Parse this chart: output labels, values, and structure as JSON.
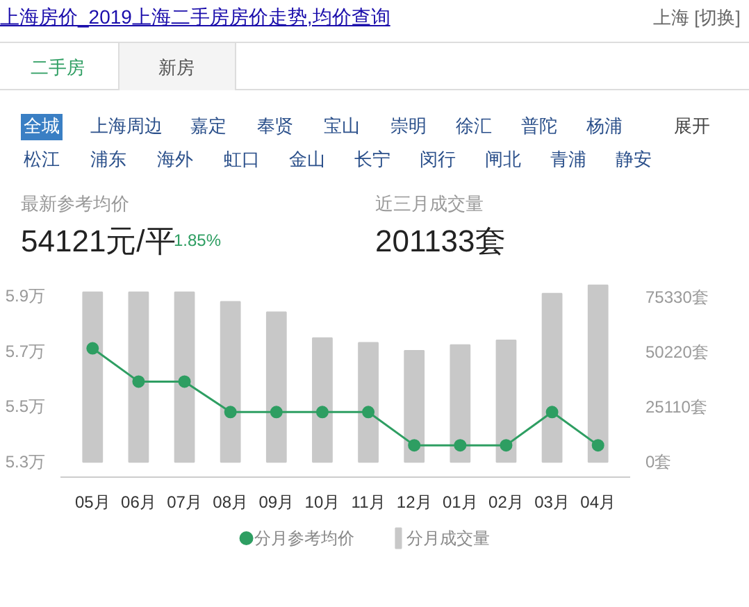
{
  "chart_data": {
    "type": "bar",
    "title": "上海房价_2019上海二手房房价走势,均价查询",
    "categories": [
      "05月",
      "06月",
      "07月",
      "08月",
      "09月",
      "10月",
      "11月",
      "12月",
      "01月",
      "02月",
      "03月",
      "04月"
    ],
    "series": [
      {
        "name": "分月成交量",
        "axis": "y2",
        "color": "#c8c8c8",
        "values": [
          77500,
          77500,
          77500,
          73200,
          68400,
          56600,
          54500,
          50800,
          53400,
          55600,
          76900,
          80700
        ]
      },
      {
        "name": "分月参考均价",
        "type": "line",
        "color": "#2e9e62",
        "values": [
          5.71,
          5.59,
          5.59,
          5.48,
          5.48,
          5.48,
          5.48,
          5.36,
          5.36,
          5.36,
          5.48,
          5.36
        ]
      }
    ],
    "ylim": [
      5.245,
      5.947
    ],
    "yticks": [
      {
        "value": 5.3,
        "label": "5.3万"
      },
      {
        "value": 5.5,
        "label": "5.5万"
      },
      {
        "value": 5.7,
        "label": "5.7万"
      },
      {
        "value": 5.9,
        "label": "5.9万"
      }
    ],
    "y2lim": [
      -6900,
      81900
    ],
    "y2ticks": [
      {
        "value": 0,
        "label": "0套"
      },
      {
        "value": 25110,
        "label": "25110套"
      },
      {
        "value": 50220,
        "label": "50220套"
      },
      {
        "value": 75330,
        "label": "75330套"
      }
    ],
    "marker": "circle",
    "grid": false,
    "legend": "bottom",
    "annotations": [
      "上海 [切换]",
      "二手房",
      "新房",
      "全城",
      "上海周边",
      "嘉定",
      "奉贤",
      "宝山",
      "崇明",
      "徐汇",
      "普陀",
      "杨浦",
      "松江",
      "浦东",
      "海外",
      "虹口",
      "金山",
      "长宁",
      "闵行",
      "闸北",
      "青浦",
      "静安",
      "展开",
      "最新参考均价",
      "54121元/平",
      "1.85%",
      "近三月成交量",
      "201133套"
    ]
  }
}
